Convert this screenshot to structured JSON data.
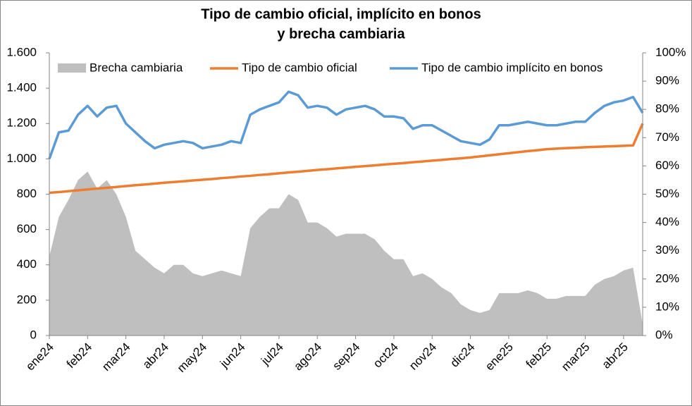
{
  "chart_data": {
    "type": "line",
    "title": [
      "Tipo de cambio oficial, implícito en bonos",
      "y brecha cambiaria"
    ],
    "categories": [
      "ene24",
      null,
      null,
      null,
      "feb24",
      null,
      null,
      null,
      "mar24",
      null,
      null,
      null,
      "abr24",
      null,
      null,
      null,
      "may24",
      null,
      null,
      null,
      "jun24",
      null,
      null,
      null,
      "jul24",
      null,
      null,
      null,
      "ago24",
      null,
      null,
      null,
      "sep24",
      null,
      null,
      null,
      "oct24",
      null,
      null,
      null,
      "nov24",
      null,
      null,
      null,
      "dic24",
      null,
      null,
      null,
      "ene25",
      null,
      null,
      null,
      "feb25",
      null,
      null,
      null,
      "mar25",
      null,
      null,
      null,
      "abr25",
      null,
      null
    ],
    "series": [
      {
        "name": "Brecha cambiaria",
        "type": "area",
        "axis": "y2",
        "color": "#bfbfbf",
        "values": [
          28,
          42,
          48,
          55,
          58,
          52,
          55,
          50,
          42,
          30,
          27,
          24,
          22,
          25,
          25,
          22,
          21,
          22,
          23,
          22,
          21,
          38,
          42,
          45,
          45,
          50,
          48,
          40,
          40,
          38,
          35,
          36,
          36,
          36,
          34,
          30,
          27,
          27,
          21,
          22,
          20,
          17,
          15,
          11,
          9,
          8,
          9,
          15,
          15,
          15,
          16,
          15,
          13,
          13,
          14,
          14,
          14,
          18,
          20,
          21,
          23,
          24,
          4
        ]
      },
      {
        "name": "Tipo de cambio oficial",
        "type": "line",
        "color": "#ed7d31",
        "values": [
          808,
          812,
          817,
          822,
          827,
          832,
          836,
          841,
          846,
          851,
          855,
          860,
          865,
          869,
          873,
          878,
          882,
          886,
          891,
          895,
          900,
          904,
          909,
          913,
          918,
          923,
          927,
          932,
          937,
          941,
          946,
          950,
          955,
          959,
          963,
          968,
          972,
          976,
          981,
          985,
          990,
          994,
          999,
          1003,
          1008,
          1014,
          1020,
          1026,
          1032,
          1038,
          1044,
          1049,
          1055,
          1058,
          1061,
          1063,
          1066,
          1068,
          1070,
          1072,
          1074,
          1076,
          1200
        ]
      },
      {
        "name": "Tipo de cambio implícito en bonos",
        "type": "line",
        "color": "#5b9bd5",
        "values": [
          1000,
          1150,
          1160,
          1250,
          1300,
          1240,
          1290,
          1300,
          1200,
          1150,
          1100,
          1060,
          1080,
          1090,
          1100,
          1090,
          1060,
          1070,
          1080,
          1100,
          1090,
          1250,
          1280,
          1300,
          1320,
          1380,
          1360,
          1290,
          1300,
          1290,
          1250,
          1280,
          1290,
          1300,
          1280,
          1240,
          1240,
          1230,
          1170,
          1190,
          1190,
          1160,
          1130,
          1100,
          1090,
          1080,
          1110,
          1190,
          1190,
          1200,
          1210,
          1200,
          1190,
          1190,
          1200,
          1210,
          1210,
          1260,
          1300,
          1320,
          1330,
          1350,
          1260
        ]
      }
    ],
    "ylim": [
      0,
      1600
    ],
    "yticks": [
      0,
      200,
      400,
      600,
      800,
      {
        "value": 1000,
        "label": "1.000"
      },
      {
        "value": 1200,
        "label": "1.200"
      },
      {
        "value": 1400,
        "label": "1.400"
      },
      {
        "value": 1600,
        "label": "1.600"
      }
    ],
    "y2lim": [
      0,
      100
    ],
    "y2ticks": [
      {
        "value": 0,
        "label": "0%"
      },
      {
        "value": 10,
        "label": "10%"
      },
      {
        "value": 20,
        "label": "20%"
      },
      {
        "value": 30,
        "label": "30%"
      },
      {
        "value": 40,
        "label": "40%"
      },
      {
        "value": 50,
        "label": "50%"
      },
      {
        "value": 60,
        "label": "60%"
      },
      {
        "value": 70,
        "label": "70%"
      },
      {
        "value": 80,
        "label": "80%"
      },
      {
        "value": 90,
        "label": "90%"
      },
      {
        "value": 100,
        "label": "100%"
      }
    ],
    "legend": "top"
  }
}
